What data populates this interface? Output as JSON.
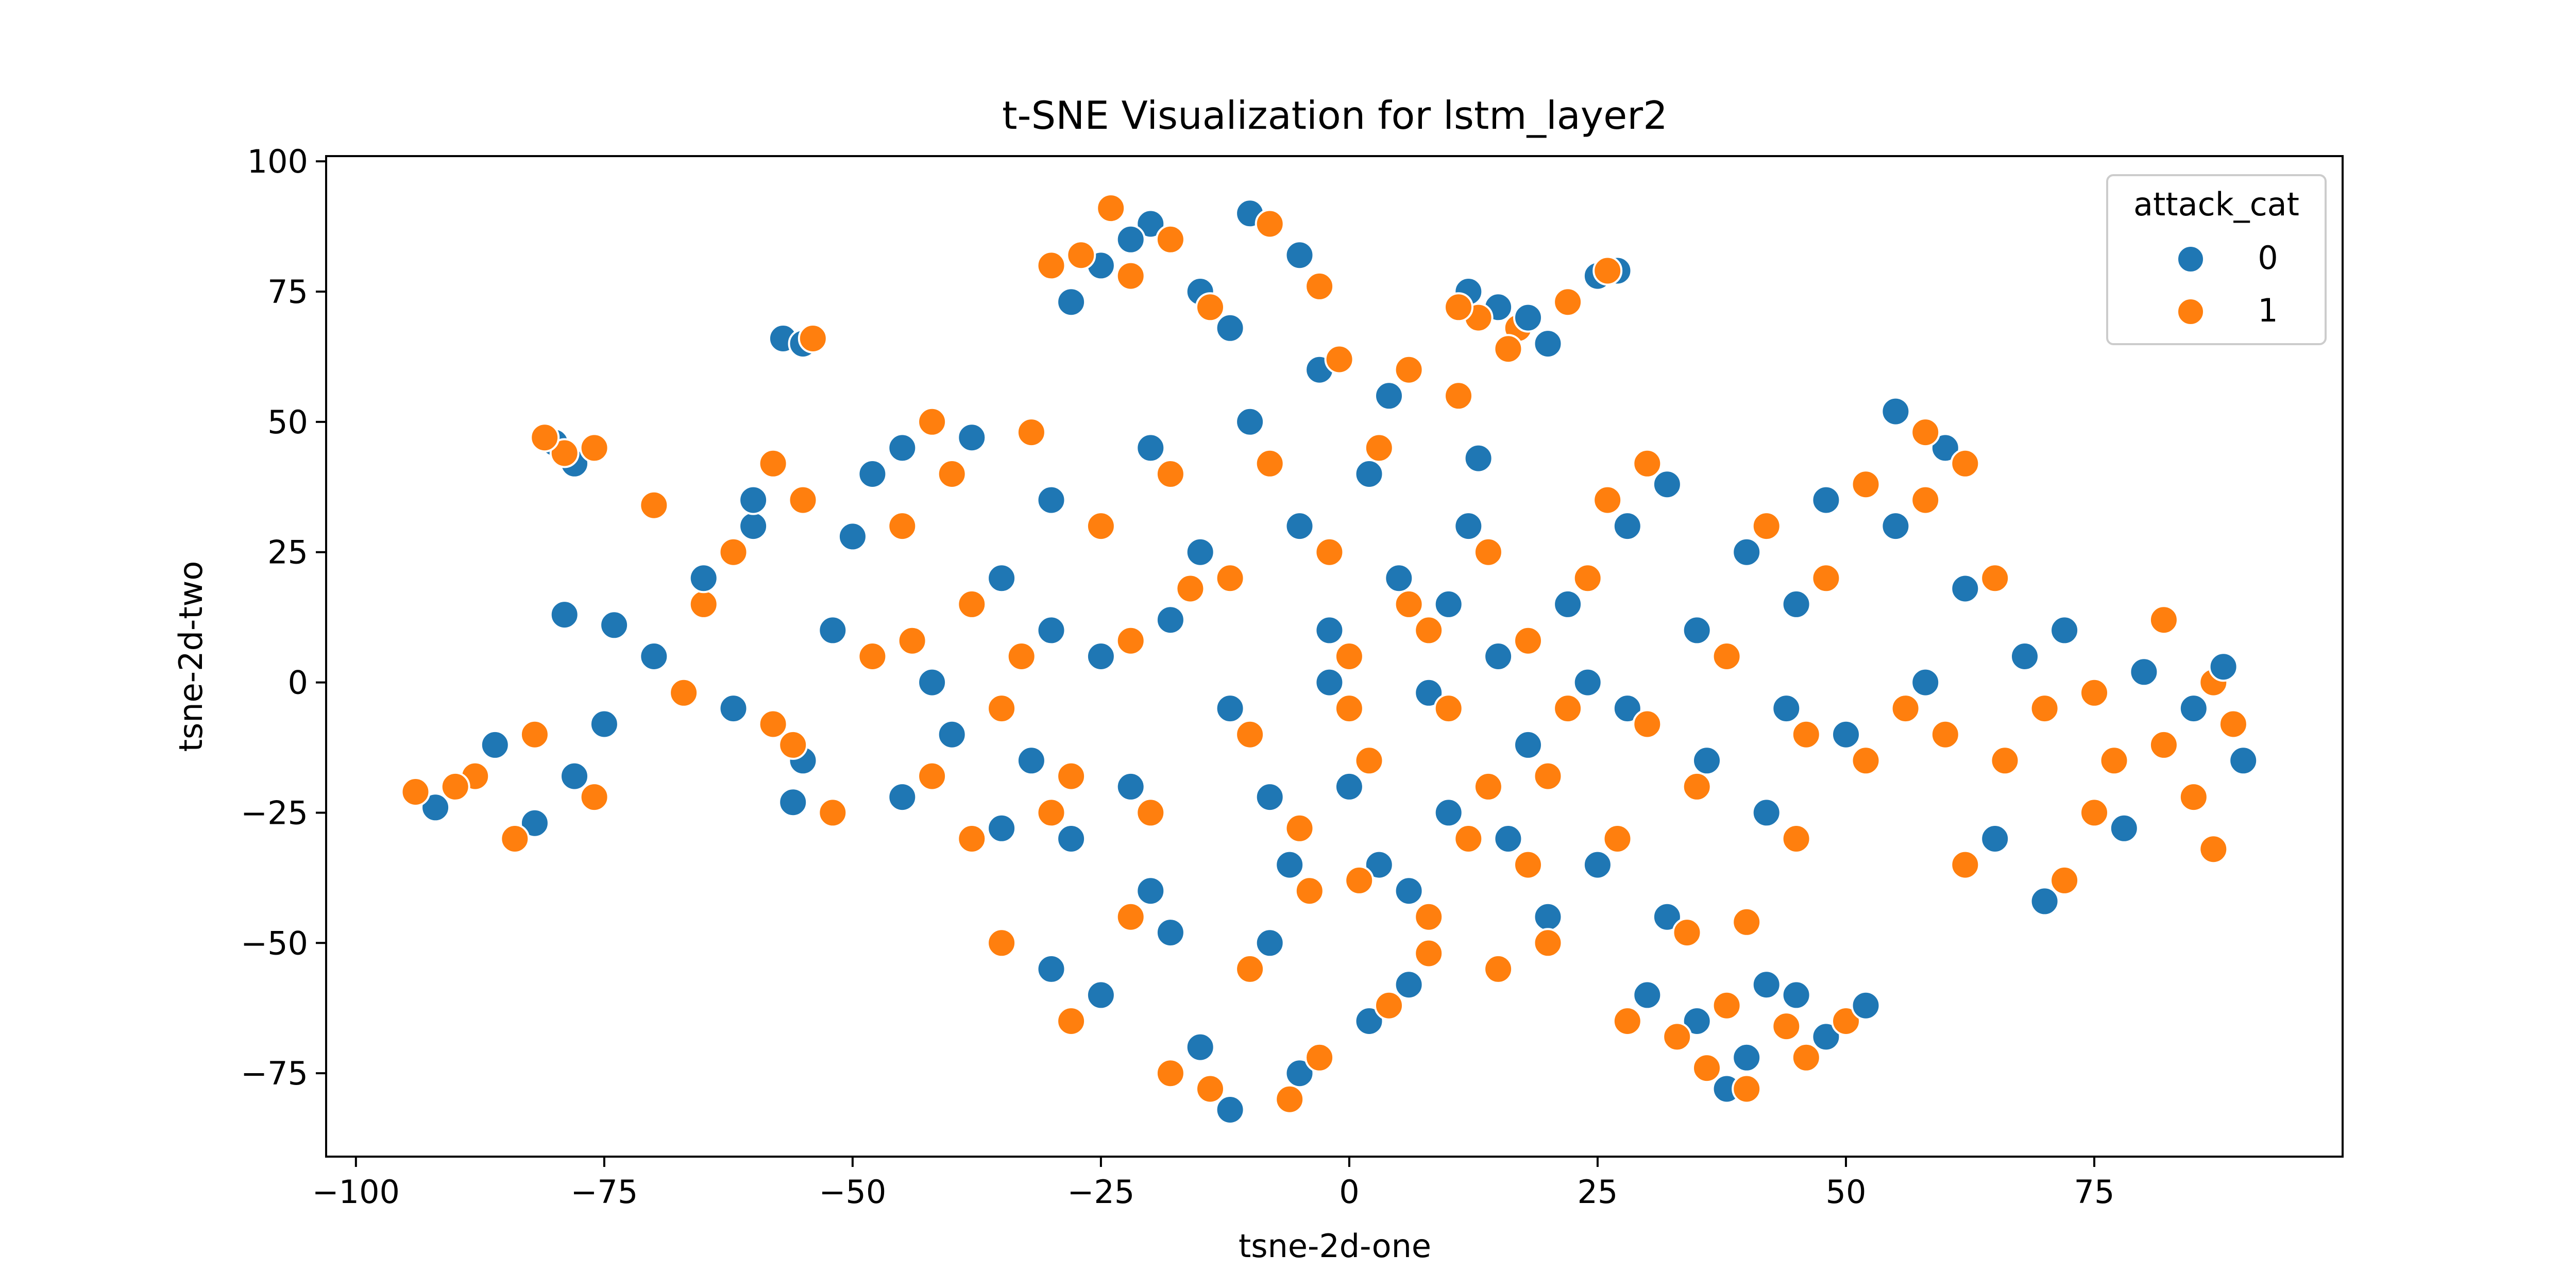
{
  "chart_data": {
    "type": "scatter",
    "title": "t-SNE Visualization for lstm_layer2",
    "xlabel": "tsne-2d-one",
    "ylabel": "tsne-2d-two",
    "xlim": [
      -103,
      100
    ],
    "ylim": [
      -91,
      101
    ],
    "x_ticks": [
      {
        "value": -100,
        "label": "−100"
      },
      {
        "value": -75,
        "label": "−75"
      },
      {
        "value": -50,
        "label": "−50"
      },
      {
        "value": -25,
        "label": "−25"
      },
      {
        "value": 0,
        "label": "0"
      },
      {
        "value": 25,
        "label": "25"
      },
      {
        "value": 50,
        "label": "50"
      },
      {
        "value": 75,
        "label": "75"
      }
    ],
    "y_ticks": [
      {
        "value": 100,
        "label": "100"
      },
      {
        "value": 75,
        "label": "75"
      },
      {
        "value": 50,
        "label": "50"
      },
      {
        "value": 25,
        "label": "25"
      },
      {
        "value": 0,
        "label": "0"
      },
      {
        "value": -25,
        "label": "−25"
      },
      {
        "value": -50,
        "label": "−50"
      },
      {
        "value": -75,
        "label": "−75"
      }
    ],
    "grid": false,
    "legend": {
      "title": "attack_cat",
      "placement": "top-right"
    },
    "series": [
      {
        "name": "0",
        "color": "#1f77b4",
        "points": [
          [
            -86,
            -12
          ],
          [
            -78,
            -18
          ],
          [
            -92,
            -24
          ],
          [
            -82,
            -27
          ],
          [
            -75,
            -8
          ],
          [
            -80,
            46
          ],
          [
            -78,
            42
          ],
          [
            -57,
            66
          ],
          [
            -55,
            65
          ],
          [
            -56,
            -23
          ],
          [
            -79,
            13
          ],
          [
            -74,
            11
          ],
          [
            -60,
            30
          ],
          [
            -48,
            40
          ],
          [
            -35,
            20
          ],
          [
            -52,
            10
          ],
          [
            -62,
            -5
          ],
          [
            -40,
            -10
          ],
          [
            -30,
            35
          ],
          [
            -45,
            -22
          ],
          [
            -20,
            45
          ],
          [
            -10,
            50
          ],
          [
            -15,
            25
          ],
          [
            -5,
            30
          ],
          [
            -25,
            5
          ],
          [
            -12,
            -5
          ],
          [
            -32,
            -15
          ],
          [
            -8,
            -22
          ],
          [
            -50,
            28
          ],
          [
            -38,
            47
          ],
          [
            2,
            40
          ],
          [
            5,
            20
          ],
          [
            -2,
            10
          ],
          [
            8,
            -2
          ],
          [
            12,
            30
          ],
          [
            15,
            5
          ],
          [
            22,
            15
          ],
          [
            18,
            -12
          ],
          [
            10,
            -25
          ],
          [
            3,
            -35
          ],
          [
            -20,
            -40
          ],
          [
            -8,
            -50
          ],
          [
            -25,
            -60
          ],
          [
            -15,
            -70
          ],
          [
            -5,
            -75
          ],
          [
            2,
            -65
          ],
          [
            -30,
            -55
          ],
          [
            -12,
            -82
          ],
          [
            6,
            -58
          ],
          [
            -18,
            -48
          ],
          [
            28,
            -5
          ],
          [
            35,
            10
          ],
          [
            40,
            25
          ],
          [
            32,
            38
          ],
          [
            45,
            15
          ],
          [
            50,
            -10
          ],
          [
            42,
            -25
          ],
          [
            55,
            30
          ],
          [
            60,
            45
          ],
          [
            55,
            52
          ],
          [
            62,
            18
          ],
          [
            68,
            5
          ],
          [
            72,
            10
          ],
          [
            80,
            2
          ],
          [
            85,
            -5
          ],
          [
            90,
            -15
          ],
          [
            78,
            -28
          ],
          [
            65,
            -30
          ],
          [
            70,
            -42
          ],
          [
            88,
            3
          ],
          [
            35,
            -65
          ],
          [
            40,
            -72
          ],
          [
            45,
            -60
          ],
          [
            38,
            -78
          ],
          [
            48,
            -68
          ],
          [
            30,
            -60
          ],
          [
            52,
            -62
          ],
          [
            42,
            -58
          ],
          [
            32,
            -45
          ],
          [
            25,
            -35
          ],
          [
            20,
            -45
          ],
          [
            -25,
            80
          ],
          [
            -20,
            88
          ],
          [
            -15,
            75
          ],
          [
            -10,
            90
          ],
          [
            -5,
            82
          ],
          [
            -28,
            73
          ],
          [
            -12,
            68
          ],
          [
            -22,
            85
          ],
          [
            15,
            72
          ],
          [
            20,
            65
          ],
          [
            12,
            75
          ],
          [
            25,
            78
          ],
          [
            18,
            70
          ],
          [
            27,
            79
          ],
          [
            -65,
            20
          ],
          [
            -55,
            -15
          ],
          [
            -42,
            0
          ],
          [
            -28,
            -30
          ],
          [
            -70,
            5
          ],
          [
            -45,
            45
          ],
          [
            -60,
            35
          ],
          [
            -35,
            -28
          ],
          [
            0,
            -20
          ],
          [
            -2,
            0
          ],
          [
            10,
            15
          ],
          [
            16,
            -30
          ],
          [
            24,
            0
          ],
          [
            28,
            30
          ],
          [
            36,
            -15
          ],
          [
            44,
            -5
          ],
          [
            48,
            35
          ],
          [
            58,
            0
          ],
          [
            -30,
            10
          ],
          [
            -18,
            12
          ],
          [
            -6,
            -35
          ],
          [
            6,
            -40
          ],
          [
            -22,
            -20
          ],
          [
            4,
            55
          ],
          [
            -3,
            60
          ],
          [
            13,
            43
          ]
        ]
      },
      {
        "name": "1",
        "color": "#ff7f0e",
        "points": [
          [
            -88,
            -18
          ],
          [
            -82,
            -10
          ],
          [
            -90,
            -20
          ],
          [
            -76,
            -22
          ],
          [
            -84,
            -30
          ],
          [
            -94,
            -21
          ],
          [
            -79,
            44
          ],
          [
            -81,
            47
          ],
          [
            -76,
            45
          ],
          [
            -54,
            66
          ],
          [
            -70,
            34
          ],
          [
            -55,
            35
          ],
          [
            -45,
            30
          ],
          [
            -38,
            15
          ],
          [
            -48,
            5
          ],
          [
            -58,
            -8
          ],
          [
            -35,
            -5
          ],
          [
            -25,
            30
          ],
          [
            -42,
            -18
          ],
          [
            -65,
            15
          ],
          [
            -52,
            -25
          ],
          [
            -18,
            40
          ],
          [
            -8,
            42
          ],
          [
            -12,
            20
          ],
          [
            -2,
            25
          ],
          [
            -22,
            8
          ],
          [
            -10,
            -10
          ],
          [
            -28,
            -18
          ],
          [
            -5,
            -28
          ],
          [
            -40,
            40
          ],
          [
            -32,
            48
          ],
          [
            3,
            45
          ],
          [
            6,
            15
          ],
          [
            0,
            5
          ],
          [
            10,
            -5
          ],
          [
            14,
            25
          ],
          [
            18,
            8
          ],
          [
            24,
            20
          ],
          [
            20,
            -18
          ],
          [
            12,
            -30
          ],
          [
            1,
            -38
          ],
          [
            -22,
            -45
          ],
          [
            -10,
            -55
          ],
          [
            -28,
            -65
          ],
          [
            -18,
            -75
          ],
          [
            -3,
            -72
          ],
          [
            4,
            -62
          ],
          [
            -35,
            -50
          ],
          [
            -14,
            -78
          ],
          [
            8,
            -52
          ],
          [
            -6,
            -80
          ],
          [
            30,
            -8
          ],
          [
            38,
            5
          ],
          [
            42,
            30
          ],
          [
            30,
            42
          ],
          [
            48,
            20
          ],
          [
            52,
            -15
          ],
          [
            45,
            -30
          ],
          [
            58,
            35
          ],
          [
            62,
            42
          ],
          [
            58,
            48
          ],
          [
            65,
            20
          ],
          [
            70,
            -5
          ],
          [
            75,
            -2
          ],
          [
            82,
            -12
          ],
          [
            87,
            0
          ],
          [
            89,
            -8
          ],
          [
            75,
            -25
          ],
          [
            62,
            -35
          ],
          [
            72,
            -38
          ],
          [
            82,
            12
          ],
          [
            33,
            -68
          ],
          [
            38,
            -62
          ],
          [
            46,
            -72
          ],
          [
            40,
            -78
          ],
          [
            50,
            -65
          ],
          [
            28,
            -65
          ],
          [
            44,
            -66
          ],
          [
            36,
            -74
          ],
          [
            34,
            -48
          ],
          [
            27,
            -30
          ],
          [
            15,
            -55
          ],
          [
            20,
            -50
          ],
          [
            -27,
            82
          ],
          [
            -22,
            78
          ],
          [
            -18,
            85
          ],
          [
            -8,
            88
          ],
          [
            -3,
            76
          ],
          [
            -30,
            80
          ],
          [
            -14,
            72
          ],
          [
            -24,
            91
          ],
          [
            13,
            70
          ],
          [
            17,
            68
          ],
          [
            22,
            73
          ],
          [
            26,
            79
          ],
          [
            16,
            64
          ],
          [
            11,
            72
          ],
          [
            -62,
            25
          ],
          [
            -56,
            -12
          ],
          [
            -44,
            8
          ],
          [
            -30,
            -25
          ],
          [
            -67,
            -2
          ],
          [
            -42,
            50
          ],
          [
            -58,
            42
          ],
          [
            -38,
            -30
          ],
          [
            2,
            -15
          ],
          [
            0,
            -5
          ],
          [
            8,
            10
          ],
          [
            18,
            -35
          ],
          [
            22,
            -5
          ],
          [
            26,
            35
          ],
          [
            35,
            -20
          ],
          [
            46,
            -10
          ],
          [
            52,
            38
          ],
          [
            56,
            -5
          ],
          [
            -33,
            5
          ],
          [
            -16,
            18
          ],
          [
            -4,
            -40
          ],
          [
            8,
            -45
          ],
          [
            -20,
            -25
          ],
          [
            6,
            60
          ],
          [
            -1,
            62
          ],
          [
            11,
            55
          ],
          [
            14,
            -20
          ],
          [
            40,
            -46
          ],
          [
            60,
            -10
          ],
          [
            66,
            -15
          ],
          [
            77,
            -15
          ],
          [
            85,
            -22
          ],
          [
            87,
            -32
          ]
        ]
      }
    ]
  }
}
